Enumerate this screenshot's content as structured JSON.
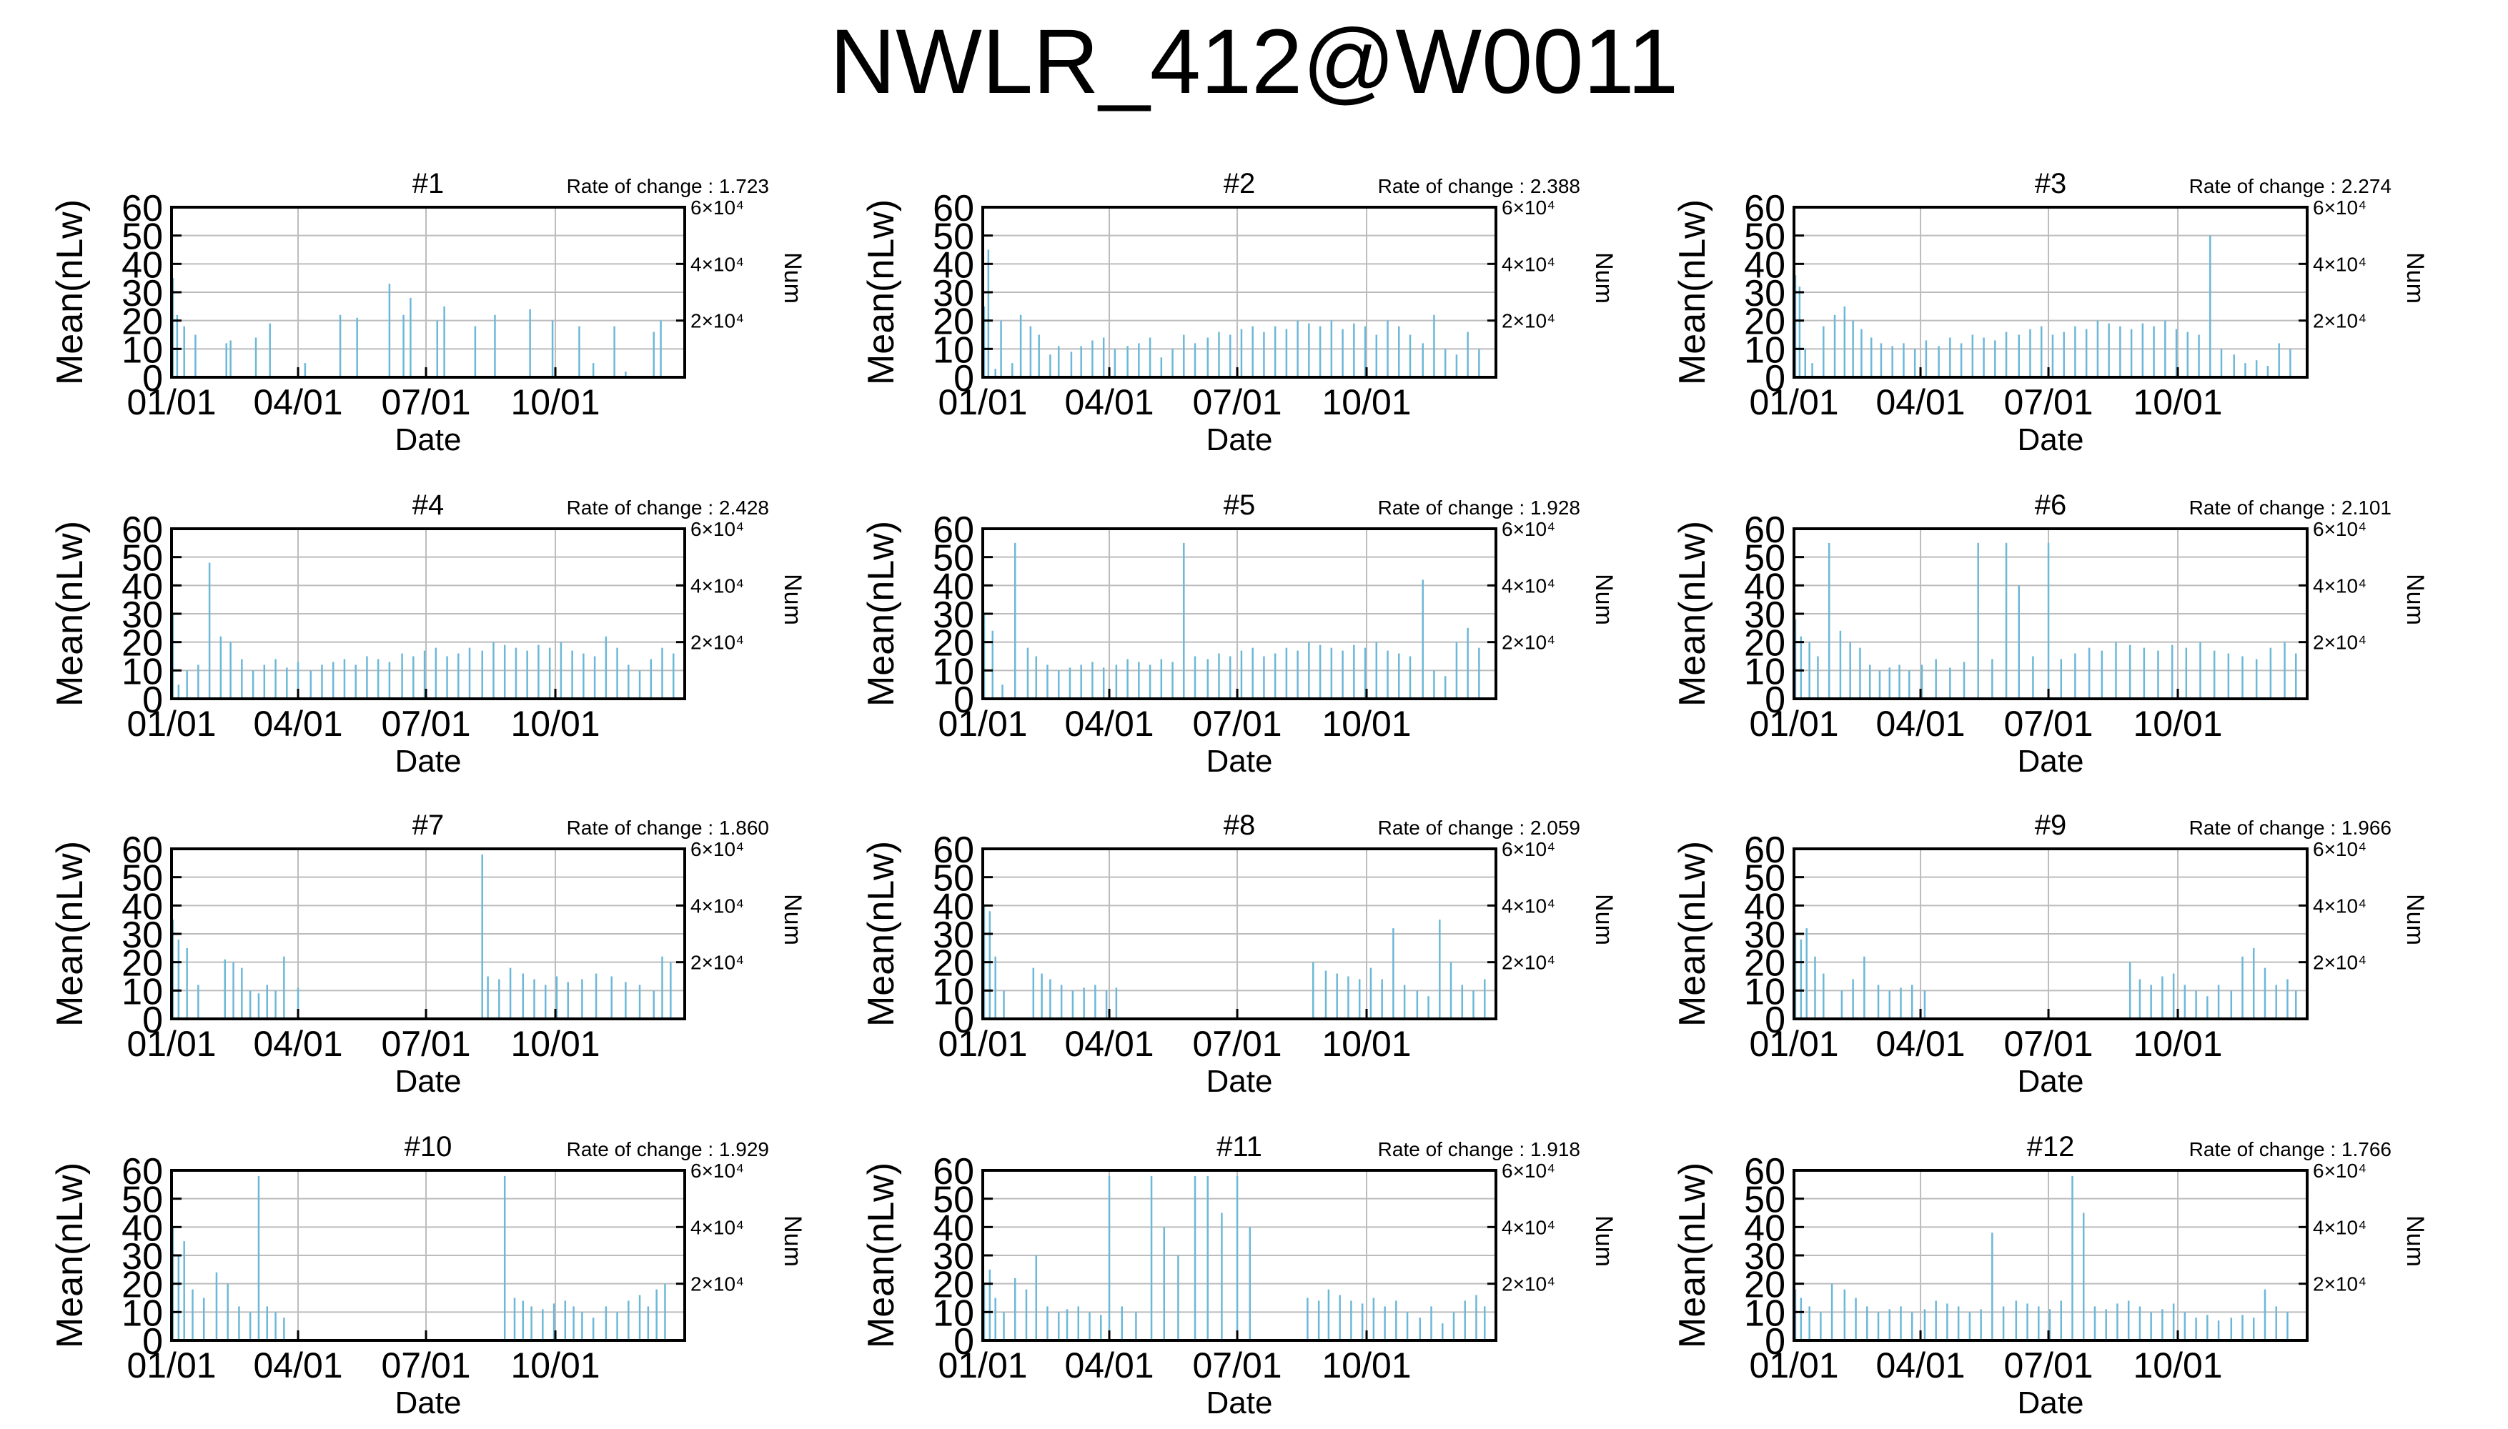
{
  "title": "NWLR_412@W0011",
  "colors": {
    "series": "#6cb8d8",
    "grid": "#bcbcbc",
    "axis": "#000000"
  },
  "shared": {
    "ylabel": "Mean(nLw)",
    "y2label": "Num",
    "xlabel": "Date",
    "y_ticks": [
      "0",
      "10",
      "20",
      "30",
      "40",
      "50",
      "60"
    ],
    "x_ticks": [
      "01/01",
      "04/01",
      "07/01",
      "10/01"
    ],
    "y2_ticks": [
      "2×10⁴",
      "4×10⁴",
      "6×10⁴"
    ]
  },
  "chart_data": [
    {
      "type": "bar",
      "title": "#1",
      "rate_label": "Rate of change : 1.723",
      "ylim": [
        0,
        60
      ],
      "grid": true,
      "x": [
        "01/02",
        "01/05",
        "01/10",
        "01/18",
        "02/09",
        "02/12",
        "03/02",
        "03/12",
        "04/06",
        "05/01",
        "05/13",
        "06/05",
        "06/15",
        "06/20",
        "07/09",
        "07/14",
        "08/05",
        "08/19",
        "09/13",
        "09/29",
        "10/18",
        "10/28",
        "11/12",
        "11/20",
        "12/10",
        "12/15"
      ],
      "values": [
        35,
        22,
        18,
        15,
        12,
        13,
        14,
        19,
        5,
        22,
        21,
        33,
        22,
        28,
        20,
        25,
        18,
        22,
        24,
        20,
        18,
        5,
        18,
        2,
        16,
        20
      ]
    },
    {
      "type": "bar",
      "title": "#2",
      "rate_label": "Rate of change : 2.388",
      "ylim": [
        0,
        60
      ],
      "grid": true,
      "x": [
        "01/02",
        "01/05",
        "01/10",
        "01/14",
        "01/22",
        "01/28",
        "02/04",
        "02/10",
        "02/18",
        "02/24",
        "03/05",
        "03/12",
        "03/20",
        "03/28",
        "04/05",
        "04/14",
        "04/22",
        "04/30",
        "05/08",
        "05/16",
        "05/24",
        "06/01",
        "06/10",
        "06/18",
        "06/26",
        "07/04",
        "07/12",
        "07/20",
        "07/28",
        "08/05",
        "08/13",
        "08/21",
        "08/29",
        "09/06",
        "09/14",
        "09/22",
        "09/30",
        "10/08",
        "10/16",
        "10/24",
        "11/01",
        "11/10",
        "11/18",
        "11/26",
        "12/04",
        "12/12",
        "12/20"
      ],
      "values": [
        25,
        45,
        3,
        20,
        5,
        22,
        18,
        15,
        8,
        11,
        9,
        11,
        13,
        14,
        10,
        11,
        12,
        14,
        7,
        10,
        15,
        12,
        14,
        16,
        15,
        17,
        18,
        16,
        18,
        17,
        20,
        19,
        18,
        20,
        17,
        19,
        18,
        15,
        20,
        18,
        15,
        12,
        22,
        10,
        8,
        16,
        10
      ]
    },
    {
      "type": "bar",
      "title": "#3",
      "rate_label": "Rate of change : 2.274",
      "ylim": [
        0,
        60
      ],
      "grid": true,
      "x": [
        "01/02",
        "01/05",
        "01/09",
        "01/14",
        "01/22",
        "01/30",
        "02/06",
        "02/12",
        "02/18",
        "02/25",
        "03/04",
        "03/12",
        "03/20",
        "03/28",
        "04/05",
        "04/14",
        "04/22",
        "04/30",
        "05/08",
        "05/16",
        "05/24",
        "06/01",
        "06/10",
        "06/18",
        "06/26",
        "07/04",
        "07/12",
        "07/20",
        "07/28",
        "08/05",
        "08/13",
        "08/21",
        "08/29",
        "09/06",
        "09/14",
        "09/22",
        "09/30",
        "10/08",
        "10/16",
        "10/24",
        "11/01",
        "11/10",
        "11/18",
        "11/26",
        "12/04",
        "12/12",
        "12/20"
      ],
      "values": [
        36,
        32,
        10,
        5,
        18,
        22,
        25,
        20,
        17,
        14,
        12,
        11,
        12,
        10,
        13,
        11,
        14,
        12,
        15,
        14,
        13,
        16,
        15,
        17,
        18,
        15,
        16,
        18,
        17,
        20,
        19,
        18,
        17,
        19,
        18,
        20,
        17,
        16,
        15,
        50,
        10,
        8,
        5,
        6,
        4,
        12,
        10
      ]
    },
    {
      "type": "bar",
      "title": "#4",
      "rate_label": "Rate of change : 2.428",
      "ylim": [
        0,
        60
      ],
      "grid": true,
      "x": [
        "01/02",
        "01/06",
        "01/12",
        "01/20",
        "01/28",
        "02/05",
        "02/12",
        "02/20",
        "02/28",
        "03/08",
        "03/16",
        "03/24",
        "04/01",
        "04/10",
        "04/18",
        "04/26",
        "05/04",
        "05/12",
        "05/20",
        "05/28",
        "06/05",
        "06/14",
        "06/22",
        "06/30",
        "07/08",
        "07/16",
        "07/24",
        "08/01",
        "08/10",
        "08/18",
        "08/26",
        "09/03",
        "09/11",
        "09/19",
        "09/27",
        "10/05",
        "10/13",
        "10/21",
        "10/29",
        "11/06",
        "11/14",
        "11/22",
        "11/30",
        "12/08",
        "12/16",
        "12/24"
      ],
      "values": [
        30,
        5,
        10,
        12,
        48,
        22,
        20,
        14,
        10,
        12,
        14,
        11,
        13,
        10,
        12,
        13,
        14,
        12,
        15,
        14,
        13,
        16,
        15,
        17,
        18,
        15,
        16,
        18,
        17,
        20,
        19,
        18,
        17,
        19,
        18,
        20,
        17,
        16,
        15,
        22,
        18,
        12,
        10,
        14,
        18,
        16
      ]
    },
    {
      "type": "bar",
      "title": "#5",
      "rate_label": "Rate of change : 1.928",
      "ylim": [
        0,
        60
      ],
      "grid": true,
      "x": [
        "01/02",
        "01/08",
        "01/15",
        "01/24",
        "02/02",
        "02/08",
        "02/16",
        "02/24",
        "03/04",
        "03/12",
        "03/20",
        "03/28",
        "04/06",
        "04/14",
        "04/22",
        "04/30",
        "05/08",
        "05/16",
        "05/24",
        "06/01",
        "06/10",
        "06/18",
        "06/26",
        "07/04",
        "07/12",
        "07/20",
        "07/28",
        "08/05",
        "08/13",
        "08/21",
        "08/29",
        "09/06",
        "09/14",
        "09/22",
        "09/30",
        "10/08",
        "10/16",
        "10/24",
        "11/01",
        "11/10",
        "11/18",
        "11/26",
        "12/04",
        "12/12",
        "12/20"
      ],
      "values": [
        30,
        24,
        5,
        55,
        18,
        15,
        12,
        10,
        11,
        12,
        13,
        11,
        12,
        14,
        13,
        12,
        14,
        13,
        55,
        15,
        14,
        16,
        15,
        17,
        18,
        15,
        16,
        18,
        17,
        20,
        19,
        18,
        17,
        19,
        18,
        20,
        17,
        16,
        15,
        42,
        10,
        8,
        20,
        25,
        18
      ]
    },
    {
      "type": "bar",
      "title": "#6",
      "rate_label": "Rate of change : 2.101",
      "ylim": [
        0,
        60
      ],
      "grid": true,
      "x": [
        "01/02",
        "01/06",
        "01/12",
        "01/18",
        "01/26",
        "02/03",
        "02/10",
        "02/17",
        "02/24",
        "03/03",
        "03/10",
        "03/17",
        "03/24",
        "04/02",
        "04/12",
        "04/22",
        "05/02",
        "05/12",
        "05/22",
        "06/01",
        "06/10",
        "06/20",
        "07/01",
        "07/10",
        "07/20",
        "07/30",
        "08/08",
        "08/18",
        "08/28",
        "09/07",
        "09/17",
        "09/27",
        "10/07",
        "10/17",
        "10/27",
        "11/06",
        "11/16",
        "11/26",
        "12/06",
        "12/16",
        "12/24"
      ],
      "values": [
        28,
        22,
        20,
        15,
        55,
        24,
        20,
        18,
        12,
        10,
        11,
        12,
        10,
        12,
        14,
        11,
        13,
        55,
        14,
        55,
        40,
        15,
        55,
        14,
        16,
        18,
        17,
        20,
        19,
        18,
        17,
        19,
        18,
        20,
        17,
        16,
        15,
        14,
        18,
        20,
        16
      ]
    },
    {
      "type": "bar",
      "title": "#7",
      "rate_label": "Rate of change : 1.860",
      "ylim": [
        0,
        60
      ],
      "grid": true,
      "x": [
        "01/02",
        "01/06",
        "01/12",
        "01/20",
        "02/08",
        "02/14",
        "02/20",
        "02/26",
        "03/04",
        "03/10",
        "03/16",
        "03/22",
        "04/01",
        "08/10",
        "08/14",
        "08/22",
        "08/30",
        "09/08",
        "09/16",
        "09/24",
        "10/02",
        "10/10",
        "10/20",
        "10/30",
        "11/10",
        "11/20",
        "11/30",
        "12/10",
        "12/16",
        "12/22"
      ],
      "values": [
        35,
        28,
        25,
        12,
        21,
        20,
        18,
        10,
        9,
        12,
        10,
        22,
        11,
        58,
        15,
        14,
        18,
        16,
        14,
        12,
        15,
        13,
        14,
        16,
        15,
        13,
        12,
        10,
        22,
        20
      ]
    },
    {
      "type": "bar",
      "title": "#8",
      "rate_label": "Rate of change : 2.059",
      "ylim": [
        0,
        60
      ],
      "grid": true,
      "x": [
        "01/02",
        "01/06",
        "01/10",
        "01/16",
        "02/06",
        "02/12",
        "02/18",
        "02/26",
        "03/06",
        "03/14",
        "03/22",
        "03/30",
        "04/06",
        "08/24",
        "09/02",
        "09/10",
        "09/18",
        "09/26",
        "10/04",
        "10/12",
        "10/20",
        "10/28",
        "11/06",
        "11/14",
        "11/22",
        "11/30",
        "12/08",
        "12/16",
        "12/24"
      ],
      "values": [
        40,
        38,
        22,
        10,
        18,
        16,
        14,
        12,
        10,
        11,
        12,
        10,
        11,
        20,
        17,
        16,
        15,
        14,
        18,
        14,
        32,
        12,
        10,
        8,
        35,
        20,
        12,
        10,
        14
      ]
    },
    {
      "type": "bar",
      "title": "#9",
      "rate_label": "Rate of change : 1.966",
      "ylim": [
        0,
        60
      ],
      "grid": true,
      "x": [
        "01/02",
        "01/06",
        "01/10",
        "01/16",
        "01/22",
        "02/04",
        "02/12",
        "02/20",
        "03/02",
        "03/10",
        "03/18",
        "03/26",
        "04/04",
        "08/28",
        "09/04",
        "09/12",
        "09/20",
        "09/28",
        "10/06",
        "10/14",
        "10/22",
        "10/30",
        "11/08",
        "11/16",
        "11/24",
        "12/02",
        "12/10",
        "12/18",
        "12/24"
      ],
      "values": [
        30,
        28,
        32,
        22,
        16,
        10,
        14,
        22,
        12,
        10,
        11,
        12,
        10,
        20,
        14,
        12,
        15,
        16,
        12,
        10,
        8,
        12,
        10,
        22,
        25,
        18,
        12,
        14,
        10
      ]
    },
    {
      "type": "bar",
      "title": "#10",
      "rate_label": "Rate of change : 1.929",
      "ylim": [
        0,
        60
      ],
      "grid": true,
      "x": [
        "01/02",
        "01/06",
        "01/10",
        "01/16",
        "01/24",
        "02/02",
        "02/10",
        "02/18",
        "02/26",
        "03/04",
        "03/10",
        "03/16",
        "03/22",
        "08/26",
        "09/02",
        "09/08",
        "09/14",
        "09/22",
        "09/30",
        "10/08",
        "10/14",
        "10/20",
        "10/28",
        "11/06",
        "11/14",
        "11/22",
        "11/30",
        "12/06",
        "12/12",
        "12/18"
      ],
      "values": [
        40,
        30,
        35,
        18,
        15,
        24,
        20,
        12,
        10,
        58,
        12,
        10,
        8,
        58,
        15,
        14,
        12,
        11,
        13,
        14,
        12,
        10,
        8,
        12,
        10,
        14,
        16,
        12,
        18,
        20
      ]
    },
    {
      "type": "bar",
      "title": "#11",
      "rate_label": "Rate of change : 1.918",
      "ylim": [
        0,
        60
      ],
      "grid": true,
      "x": [
        "01/02",
        "01/06",
        "01/10",
        "01/16",
        "01/24",
        "02/01",
        "02/08",
        "02/16",
        "02/24",
        "03/02",
        "03/10",
        "03/18",
        "03/26",
        "04/01",
        "04/10",
        "04/20",
        "05/01",
        "05/10",
        "05/20",
        "06/01",
        "06/10",
        "06/20",
        "07/01",
        "07/10",
        "08/20",
        "08/28",
        "09/04",
        "09/12",
        "09/20",
        "09/28",
        "10/06",
        "10/14",
        "10/22",
        "10/30",
        "11/08",
        "11/16",
        "11/24",
        "12/02",
        "12/10",
        "12/18",
        "12/24"
      ],
      "values": [
        20,
        25,
        15,
        10,
        22,
        18,
        30,
        12,
        10,
        11,
        12,
        10,
        9,
        58,
        12,
        10,
        58,
        40,
        30,
        58,
        58,
        45,
        58,
        40,
        15,
        14,
        18,
        16,
        14,
        13,
        15,
        12,
        14,
        10,
        8,
        12,
        6,
        10,
        14,
        16,
        12
      ]
    },
    {
      "type": "bar",
      "title": "#12",
      "rate_label": "Rate of change : 1.766",
      "ylim": [
        0,
        60
      ],
      "grid": true,
      "x": [
        "01/02",
        "01/06",
        "01/12",
        "01/20",
        "01/28",
        "02/06",
        "02/14",
        "02/22",
        "03/02",
        "03/10",
        "03/18",
        "03/26",
        "04/04",
        "04/12",
        "04/20",
        "04/28",
        "05/06",
        "05/14",
        "05/22",
        "05/30",
        "06/08",
        "06/16",
        "06/24",
        "07/02",
        "07/10",
        "07/18",
        "07/26",
        "08/03",
        "08/11",
        "08/19",
        "08/27",
        "09/04",
        "09/12",
        "09/20",
        "09/28",
        "10/06",
        "10/14",
        "10/22",
        "10/30",
        "11/08",
        "11/16",
        "11/24",
        "12/02",
        "12/10",
        "12/18"
      ],
      "values": [
        18,
        15,
        12,
        10,
        20,
        18,
        15,
        12,
        10,
        11,
        12,
        10,
        11,
        14,
        13,
        12,
        10,
        11,
        38,
        12,
        14,
        13,
        12,
        11,
        14,
        58,
        45,
        12,
        11,
        13,
        14,
        12,
        10,
        11,
        13,
        10,
        8,
        9,
        7,
        8,
        9,
        8,
        18,
        12,
        10
      ]
    }
  ]
}
